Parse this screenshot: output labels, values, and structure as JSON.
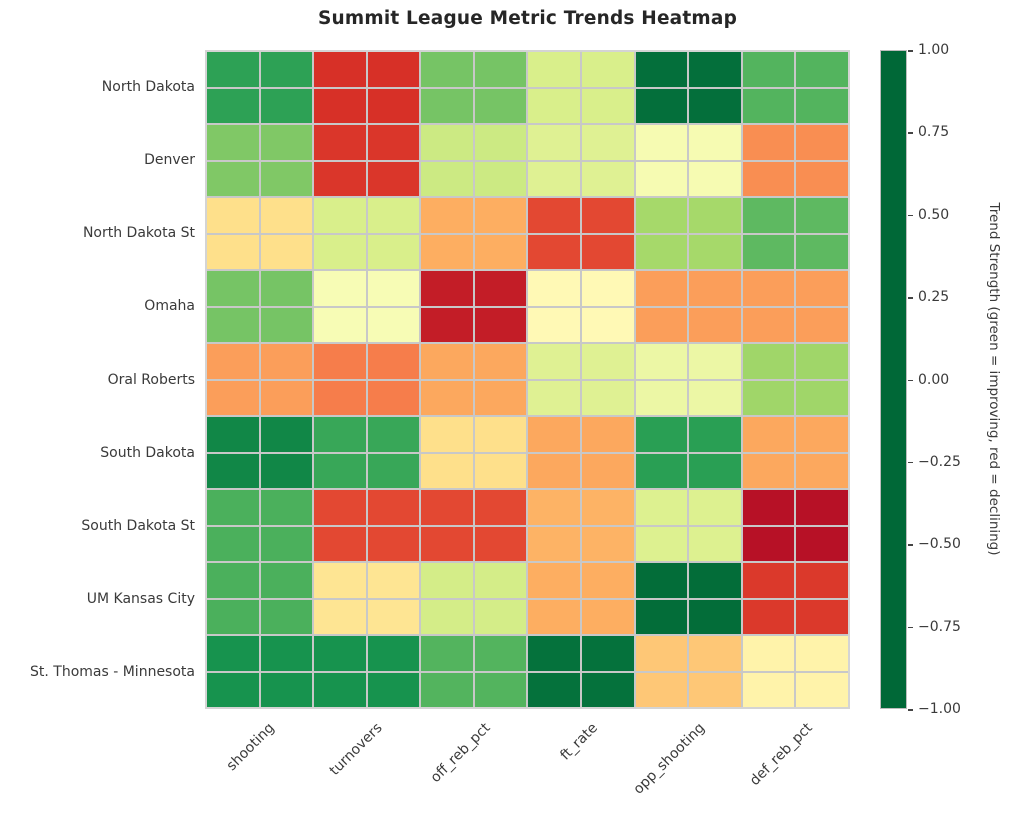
{
  "title": "Summit League Metric Trends Heatmap",
  "chart_data": {
    "type": "heatmap",
    "title": "Summit League Metric Trends Heatmap",
    "x_labels": [
      "shooting",
      "turnovers",
      "off_reb_pct",
      "ft_rate",
      "opp_shooting",
      "def_reb_pct"
    ],
    "y_labels": [
      "North Dakota",
      "Denver",
      "North Dakota St",
      "Omaha",
      "Oral Roberts",
      "South Dakota",
      "South Dakota St",
      "UM Kansas City",
      "St. Thomas - Minnesota"
    ],
    "values": [
      [
        0.75,
        -0.8,
        0.55,
        0.2,
        0.97,
        0.65
      ],
      [
        0.52,
        -0.78,
        0.25,
        0.17,
        0.05,
        -0.5
      ],
      [
        -0.2,
        0.2,
        -0.4,
        -0.72,
        0.4,
        0.62
      ],
      [
        0.55,
        0.04,
        -0.88,
        -0.04,
        -0.45,
        -0.45
      ],
      [
        -0.45,
        -0.55,
        -0.42,
        0.17,
        0.1,
        0.42
      ],
      [
        0.87,
        0.72,
        -0.2,
        -0.42,
        0.76,
        -0.42
      ],
      [
        0.67,
        -0.72,
        -0.72,
        -0.38,
        0.18,
        -0.93
      ],
      [
        0.67,
        -0.17,
        0.22,
        -0.4,
        0.98,
        -0.77
      ],
      [
        0.82,
        0.82,
        0.65,
        0.96,
        -0.3,
        -0.08
      ]
    ],
    "vmin": -1,
    "vmax": 1,
    "colormap": "RdYlGn",
    "colormap_stops": [
      "#a50026",
      "#d73027",
      "#f46d43",
      "#fdae61",
      "#fee08b",
      "#ffffbf",
      "#d9ef8b",
      "#a6d96a",
      "#66bd63",
      "#1a9850",
      "#006837"
    ],
    "grid_on": true,
    "cell_block": 2,
    "legend_position": "right",
    "colorbar": {
      "tick_labels": [
        "1.00",
        "0.75",
        "0.50",
        "0.25",
        "0.00",
        "−0.25",
        "−0.50",
        "−0.75",
        "−1.00"
      ],
      "label": "Trend Strength (green = improving, red = declining)"
    }
  },
  "style": {
    "grid_line_color": "#c8c8c8",
    "title_color": "#262626",
    "tick_label_color": "#3a3a3a",
    "background": "#ffffff"
  }
}
